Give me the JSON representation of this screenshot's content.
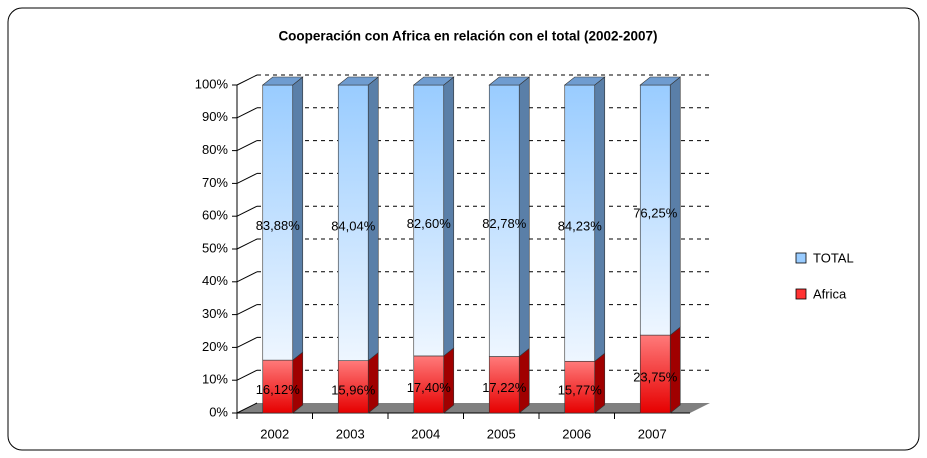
{
  "chart_data": {
    "type": "bar3d_stacked",
    "title": "Cooperación con Africa en relación con el total (2002-2007)",
    "categories": [
      "2002",
      "2003",
      "2004",
      "2005",
      "2006",
      "2007"
    ],
    "series": [
      {
        "name": "Africa",
        "color": "#ff3333",
        "values": [
          16.12,
          15.96,
          17.4,
          17.22,
          15.77,
          23.75
        ],
        "value_labels": [
          "16,12%",
          "15,96%",
          "17,40%",
          "17,22%",
          "15,77%",
          "23,75%"
        ]
      },
      {
        "name": "TOTAL",
        "color": "#99ccff",
        "values": [
          83.88,
          84.04,
          82.6,
          82.78,
          84.23,
          76.25
        ],
        "value_labels": [
          "83,88%",
          "84,04%",
          "82,60%",
          "82,78%",
          "84,23%",
          "76,25%"
        ]
      }
    ],
    "ylim": [
      0,
      100
    ],
    "yticks": [
      {
        "value": 0,
        "label": "0%"
      },
      {
        "value": 10,
        "label": "10%"
      },
      {
        "value": 20,
        "label": "20%"
      },
      {
        "value": 30,
        "label": "30%"
      },
      {
        "value": 40,
        "label": "40%"
      },
      {
        "value": 50,
        "label": "50%"
      },
      {
        "value": 60,
        "label": "60%"
      },
      {
        "value": 70,
        "label": "70%"
      },
      {
        "value": 80,
        "label": "80%"
      },
      {
        "value": 90,
        "label": "90%"
      },
      {
        "value": 100,
        "label": "100%"
      }
    ],
    "grid": true,
    "legend": "right"
  }
}
